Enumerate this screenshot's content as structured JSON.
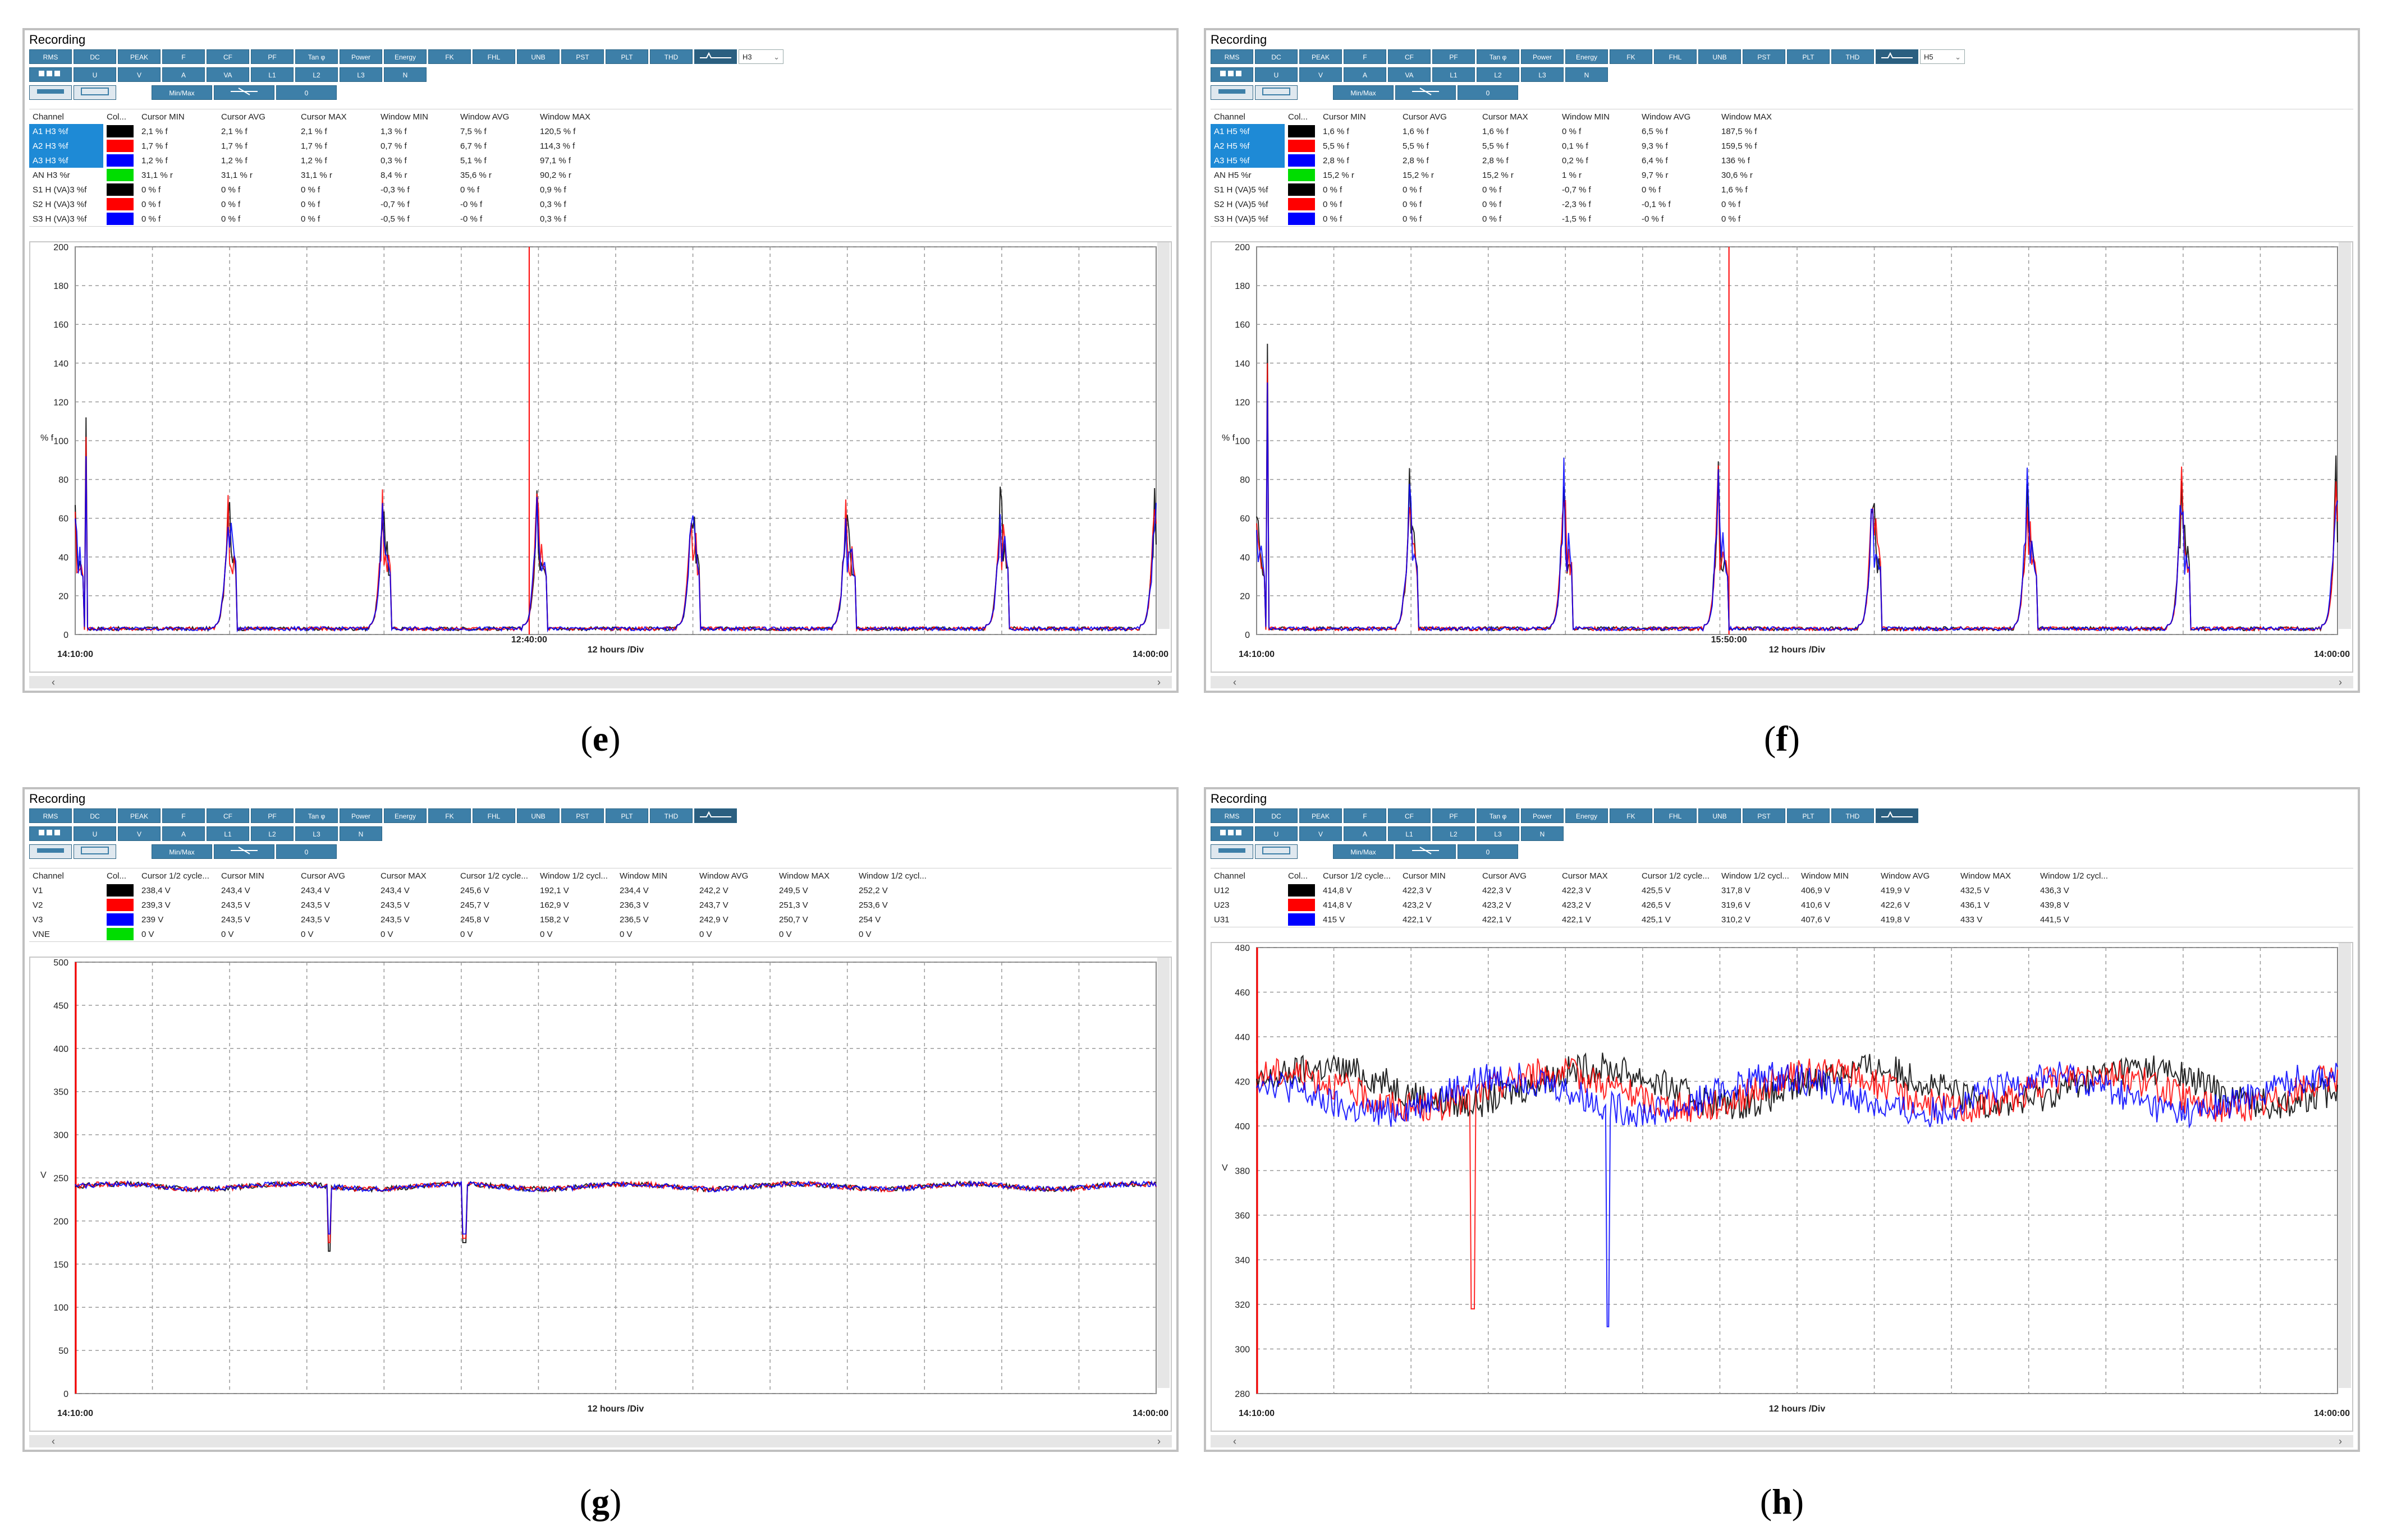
{
  "panels": [
    {
      "id": "e",
      "window_title": "Recording",
      "toolbar_row1": [
        "RMS",
        "DC",
        "PEAK",
        "F",
        "CF",
        "PF",
        "Tan φ",
        "Power",
        "Energy",
        "FK",
        "FHL",
        "UNB",
        "PST",
        "PLT",
        "THD"
      ],
      "selector_value": "H3",
      "toolbar_row2": [
        "U",
        "V",
        "A",
        "VA",
        "L1",
        "L2",
        "L3",
        "N"
      ],
      "toolbar_row3": [
        "Min/Max",
        "0"
      ],
      "columns": [
        "Channel",
        "Col...",
        "Cursor MIN",
        "Cursor AVG",
        "Cursor MAX",
        "Window MIN",
        "Window AVG",
        "Window MAX"
      ],
      "rows": [
        {
          "channel": "A1 H3 %f",
          "color": "#000000",
          "values": [
            "2,1 % f",
            "2,1 % f",
            "2,1 % f",
            "1,3 % f",
            "7,5 % f",
            "120,5 % f"
          ],
          "selected": true
        },
        {
          "channel": "A2 H3 %f",
          "color": "#ff0000",
          "values": [
            "1,7 % f",
            "1,7 % f",
            "1,7 % f",
            "0,7 % f",
            "6,7 % f",
            "114,3 % f"
          ],
          "selected": true
        },
        {
          "channel": "A3 H3 %f",
          "color": "#0000ff",
          "values": [
            "1,2 % f",
            "1,2 % f",
            "1,2 % f",
            "0,3 % f",
            "5,1 % f",
            "97,1 % f"
          ],
          "selected": true
        },
        {
          "channel": "AN H3 %r",
          "color": "#00dd00",
          "values": [
            "31,1 % r",
            "31,1 % r",
            "31,1 % r",
            "8,4 % r",
            "35,6 % r",
            "90,2 % r"
          ],
          "selected": false
        },
        {
          "channel": "S1 H (VA)3 %f",
          "color": "#000000",
          "values": [
            "0 % f",
            "0 % f",
            "0 % f",
            "-0,3 % f",
            "0 % f",
            "0,9 % f"
          ],
          "selected": false
        },
        {
          "channel": "S2 H (VA)3 %f",
          "color": "#ff0000",
          "values": [
            "0 % f",
            "0 % f",
            "0 % f",
            "-0,7 % f",
            "-0 % f",
            "0,3 % f"
          ],
          "selected": false
        },
        {
          "channel": "S3 H (VA)3 %f",
          "color": "#0000ff",
          "values": [
            "0 % f",
            "0 % f",
            "0 % f",
            "-0,5 % f",
            "-0 % f",
            "0,3 % f"
          ],
          "selected": false
        }
      ],
      "y_unit": "% f",
      "y_ticks": [
        "200",
        "180",
        "160",
        "140",
        "120",
        "100",
        "80",
        "60",
        "40",
        "20",
        "0"
      ],
      "x_start": "14:10:00",
      "x_end": "14:00:00",
      "x_cursor": "12:40:00",
      "x_div": "12 hours /Div",
      "caption": "e"
    },
    {
      "id": "f",
      "window_title": "Recording",
      "toolbar_row1": [
        "RMS",
        "DC",
        "PEAK",
        "F",
        "CF",
        "PF",
        "Tan φ",
        "Power",
        "Energy",
        "FK",
        "FHL",
        "UNB",
        "PST",
        "PLT",
        "THD"
      ],
      "selector_value": "H5",
      "toolbar_row2": [
        "U",
        "V",
        "A",
        "VA",
        "L1",
        "L2",
        "L3",
        "N"
      ],
      "toolbar_row3": [
        "Min/Max",
        "0"
      ],
      "columns": [
        "Channel",
        "Col...",
        "Cursor MIN",
        "Cursor AVG",
        "Cursor MAX",
        "Window MIN",
        "Window AVG",
        "Window MAX"
      ],
      "rows": [
        {
          "channel": "A1 H5 %f",
          "color": "#000000",
          "values": [
            "1,6 % f",
            "1,6 % f",
            "1,6 % f",
            "0 % f",
            "6,5 % f",
            "187,5 % f"
          ],
          "selected": true
        },
        {
          "channel": "A2 H5 %f",
          "color": "#ff0000",
          "values": [
            "5,5 % f",
            "5,5 % f",
            "5,5 % f",
            "0,1 % f",
            "9,3 % f",
            "159,5 % f"
          ],
          "selected": true
        },
        {
          "channel": "A3 H5 %f",
          "color": "#0000ff",
          "values": [
            "2,8 % f",
            "2,8 % f",
            "2,8 % f",
            "0,2 % f",
            "6,4 % f",
            "136 % f"
          ],
          "selected": true
        },
        {
          "channel": "AN H5 %r",
          "color": "#00dd00",
          "values": [
            "15,2 % r",
            "15,2 % r",
            "15,2 % r",
            "1 % r",
            "9,7 % r",
            "30,6 % r"
          ],
          "selected": false
        },
        {
          "channel": "S1 H (VA)5 %f",
          "color": "#000000",
          "values": [
            "0 % f",
            "0 % f",
            "0 % f",
            "-0,7 % f",
            "0 % f",
            "1,6 % f"
          ],
          "selected": false
        },
        {
          "channel": "S2 H (VA)5 %f",
          "color": "#ff0000",
          "values": [
            "0 % f",
            "0 % f",
            "0 % f",
            "-2,3 % f",
            "-0,1 % f",
            "0 % f"
          ],
          "selected": false
        },
        {
          "channel": "S3 H (VA)5 %f",
          "color": "#0000ff",
          "values": [
            "0 % f",
            "0 % f",
            "0 % f",
            "-1,5 % f",
            "-0 % f",
            "0 % f"
          ],
          "selected": false
        }
      ],
      "y_unit": "% f",
      "y_ticks": [
        "200",
        "180",
        "160",
        "140",
        "120",
        "100",
        "80",
        "60",
        "40",
        "20",
        "0"
      ],
      "x_start": "14:10:00",
      "x_end": "14:00:00",
      "x_cursor": "15:50:00",
      "x_div": "12 hours /Div",
      "caption": "f"
    },
    {
      "id": "g",
      "window_title": "Recording",
      "toolbar_row1": [
        "RMS",
        "DC",
        "PEAK",
        "F",
        "CF",
        "PF",
        "Tan φ",
        "Power",
        "Energy",
        "FK",
        "FHL",
        "UNB",
        "PST",
        "PLT",
        "THD"
      ],
      "selector_value": "",
      "toolbar_row2": [
        "U",
        "V",
        "A",
        "L1",
        "L2",
        "L3",
        "N"
      ],
      "toolbar_row3": [
        "Min/Max",
        "0"
      ],
      "columns": [
        "Channel",
        "Col...",
        "Cursor 1/2 cycle...",
        "Cursor MIN",
        "Cursor AVG",
        "Cursor MAX",
        "Cursor 1/2 cycle...",
        "Window 1/2 cycl...",
        "Window MIN",
        "Window AVG",
        "Window MAX",
        "Window 1/2 cycl..."
      ],
      "rows": [
        {
          "channel": "V1",
          "color": "#000000",
          "values": [
            "238,4 V",
            "243,4 V",
            "243,4 V",
            "243,4 V",
            "245,6 V",
            "192,1 V",
            "234,4 V",
            "242,2 V",
            "249,5 V",
            "252,2 V"
          ],
          "selected": false
        },
        {
          "channel": "V2",
          "color": "#ff0000",
          "values": [
            "239,3 V",
            "243,5 V",
            "243,5 V",
            "243,5 V",
            "245,7 V",
            "162,9 V",
            "236,3 V",
            "243,7 V",
            "251,3 V",
            "253,6 V"
          ],
          "selected": false
        },
        {
          "channel": "V3",
          "color": "#0000ff",
          "values": [
            "239 V",
            "243,5 V",
            "243,5 V",
            "243,5 V",
            "245,8 V",
            "158,2 V",
            "236,5 V",
            "242,9 V",
            "250,7 V",
            "254 V"
          ],
          "selected": false
        },
        {
          "channel": "VNE",
          "color": "#00dd00",
          "values": [
            "0 V",
            "0 V",
            "0 V",
            "0 V",
            "0 V",
            "0 V",
            "0 V",
            "0 V",
            "0 V",
            "0 V"
          ],
          "selected": false
        }
      ],
      "y_unit": "V",
      "y_ticks": [
        "500",
        "450",
        "400",
        "350",
        "300",
        "250",
        "200",
        "150",
        "100",
        "50",
        "0"
      ],
      "x_start": "14:10:00",
      "x_end": "14:00:00",
      "x_cursor": "",
      "x_div": "12 hours /Div",
      "caption": "g"
    },
    {
      "id": "h",
      "window_title": "Recording",
      "toolbar_row1": [
        "RMS",
        "DC",
        "PEAK",
        "F",
        "CF",
        "PF",
        "Tan φ",
        "Power",
        "Energy",
        "FK",
        "FHL",
        "UNB",
        "PST",
        "PLT",
        "THD"
      ],
      "selector_value": "",
      "toolbar_row2": [
        "U",
        "V",
        "A",
        "L1",
        "L2",
        "L3",
        "N"
      ],
      "toolbar_row3": [
        "Min/Max",
        "0"
      ],
      "columns": [
        "Channel",
        "Col...",
        "Cursor 1/2 cycle...",
        "Cursor MIN",
        "Cursor AVG",
        "Cursor MAX",
        "Cursor 1/2 cycle...",
        "Window 1/2 cycl...",
        "Window MIN",
        "Window AVG",
        "Window MAX",
        "Window 1/2 cycl..."
      ],
      "rows": [
        {
          "channel": "U12",
          "color": "#000000",
          "values": [
            "414,8 V",
            "422,3 V",
            "422,3 V",
            "422,3 V",
            "425,5 V",
            "317,8 V",
            "406,9 V",
            "419,9 V",
            "432,5 V",
            "436,3 V"
          ],
          "selected": false
        },
        {
          "channel": "U23",
          "color": "#ff0000",
          "values": [
            "414,8 V",
            "423,2 V",
            "423,2 V",
            "423,2 V",
            "426,5 V",
            "319,6 V",
            "410,6 V",
            "422,6 V",
            "436,1 V",
            "439,8 V"
          ],
          "selected": false
        },
        {
          "channel": "U31",
          "color": "#0000ff",
          "values": [
            "415 V",
            "422,1 V",
            "422,1 V",
            "422,1 V",
            "425,1 V",
            "310,2 V",
            "407,6 V",
            "419,8 V",
            "433 V",
            "441,5 V"
          ],
          "selected": false
        }
      ],
      "y_unit": "V",
      "y_ticks": [
        "480",
        "460",
        "440",
        "420",
        "400",
        "380",
        "360",
        "340",
        "320",
        "300",
        "280"
      ],
      "x_start": "14:10:00",
      "x_end": "14:00:00",
      "x_cursor": "",
      "x_div": "12 hours /Div",
      "caption": "h"
    }
  ],
  "colors": {
    "toolbar_button": "#3d7fa8",
    "series_black": "#000000",
    "series_red": "#ff0000",
    "series_blue": "#0000ff",
    "cursor_line": "#ff0000",
    "grid": "#999999"
  }
}
